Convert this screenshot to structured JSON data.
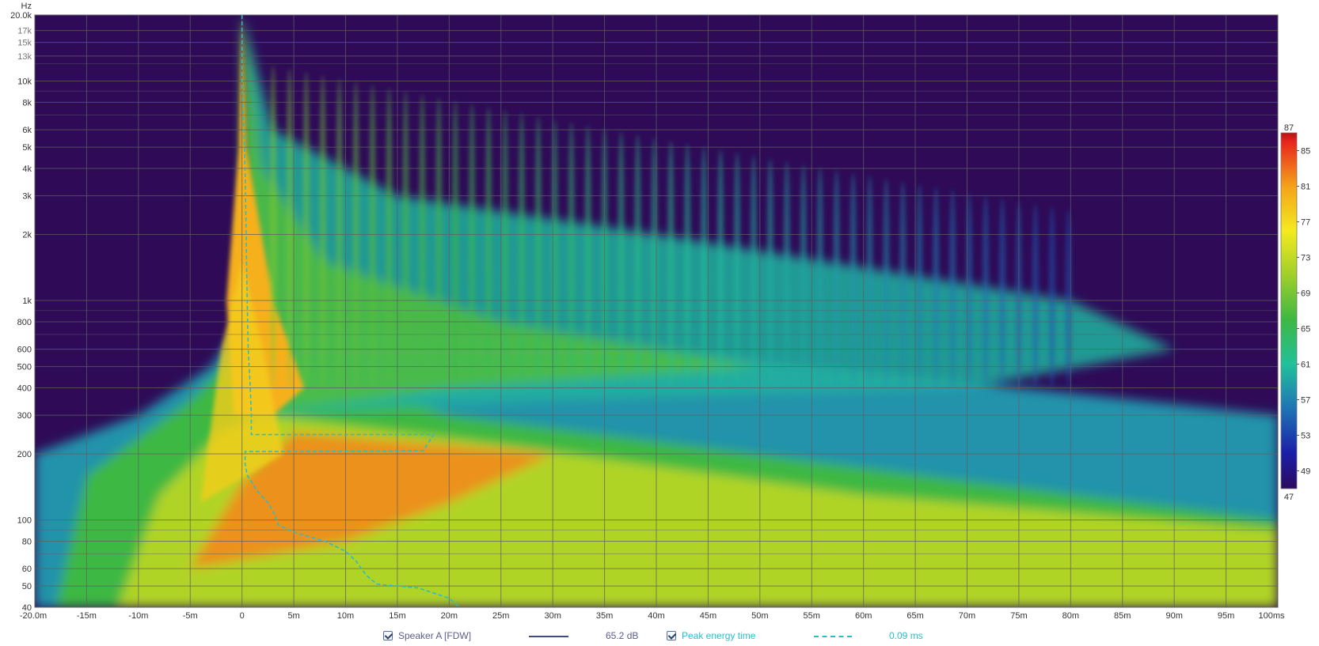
{
  "chart_data": {
    "type": "heatmap",
    "title": "",
    "x_unit_label": "ms",
    "y_unit_label": "Hz",
    "xlim": [
      -20,
      100
    ],
    "ylim": [
      40,
      20000
    ],
    "y_scale": "log",
    "x_ticks": [
      {
        "v": -20,
        "label": "-20.0m"
      },
      {
        "v": -15,
        "label": "-15m"
      },
      {
        "v": -10,
        "label": "-10m"
      },
      {
        "v": -5,
        "label": "-5m"
      },
      {
        "v": 0,
        "label": "0"
      },
      {
        "v": 5,
        "label": "5m"
      },
      {
        "v": 10,
        "label": "10m"
      },
      {
        "v": 15,
        "label": "15m"
      },
      {
        "v": 20,
        "label": "20m"
      },
      {
        "v": 25,
        "label": "25m"
      },
      {
        "v": 30,
        "label": "30m"
      },
      {
        "v": 35,
        "label": "35m"
      },
      {
        "v": 40,
        "label": "40m"
      },
      {
        "v": 45,
        "label": "45m"
      },
      {
        "v": 50,
        "label": "50m"
      },
      {
        "v": 55,
        "label": "55m"
      },
      {
        "v": 60,
        "label": "60m"
      },
      {
        "v": 65,
        "label": "65m"
      },
      {
        "v": 70,
        "label": "70m"
      },
      {
        "v": 75,
        "label": "75m"
      },
      {
        "v": 80,
        "label": "80m"
      },
      {
        "v": 85,
        "label": "85m"
      },
      {
        "v": 90,
        "label": "90m"
      },
      {
        "v": 95,
        "label": "95m"
      },
      {
        "v": 100,
        "label": "100ms"
      }
    ],
    "y_ticks": [
      {
        "v": 20000,
        "label": "20.0k",
        "dim": false
      },
      {
        "v": 17000,
        "label": "17k",
        "dim": true
      },
      {
        "v": 15000,
        "label": "15k",
        "dim": true
      },
      {
        "v": 13000,
        "label": "13k",
        "dim": true
      },
      {
        "v": 10000,
        "label": "10k",
        "dim": false
      },
      {
        "v": 8000,
        "label": "8k",
        "dim": false
      },
      {
        "v": 6000,
        "label": "6k",
        "dim": false
      },
      {
        "v": 5000,
        "label": "5k",
        "dim": false
      },
      {
        "v": 4000,
        "label": "4k",
        "dim": false
      },
      {
        "v": 3000,
        "label": "3k",
        "dim": false
      },
      {
        "v": 2000,
        "label": "2k",
        "dim": false
      },
      {
        "v": 1000,
        "label": "1k",
        "dim": false
      },
      {
        "v": 800,
        "label": "800",
        "dim": false
      },
      {
        "v": 600,
        "label": "600",
        "dim": false
      },
      {
        "v": 500,
        "label": "500",
        "dim": false
      },
      {
        "v": 400,
        "label": "400",
        "dim": false
      },
      {
        "v": 300,
        "label": "300",
        "dim": false
      },
      {
        "v": 200,
        "label": "200",
        "dim": false
      },
      {
        "v": 100,
        "label": "100",
        "dim": false
      },
      {
        "v": 80,
        "label": "80",
        "dim": false
      },
      {
        "v": 60,
        "label": "60",
        "dim": false
      },
      {
        "v": 50,
        "label": "50",
        "dim": false
      },
      {
        "v": 40,
        "label": "40",
        "dim": false
      }
    ],
    "minor_y_gridlines": [
      12000,
      9000,
      7000,
      900,
      700,
      90,
      70
    ],
    "colorbar": {
      "min": 47,
      "max": 87,
      "min_label": "47",
      "max_label": "87",
      "ticks": [
        85,
        81,
        77,
        73,
        69,
        65,
        61,
        57,
        53,
        49
      ],
      "stops": [
        {
          "v": 47,
          "color": "#2c0a5e"
        },
        {
          "v": 51,
          "color": "#1a1fa8"
        },
        {
          "v": 56,
          "color": "#1f74b5"
        },
        {
          "v": 61,
          "color": "#21c19a"
        },
        {
          "v": 66,
          "color": "#3db843"
        },
        {
          "v": 71,
          "color": "#9fcf2a"
        },
        {
          "v": 76,
          "color": "#f4ea1f"
        },
        {
          "v": 81,
          "color": "#f5a21a"
        },
        {
          "v": 86,
          "color": "#e8251c"
        },
        {
          "v": 87,
          "color": "#b51212"
        }
      ]
    },
    "background_color": "#2e0a57",
    "peak_energy_curve": [
      [
        0,
        20000
      ],
      [
        0,
        10000
      ],
      [
        0.3,
        4000
      ],
      [
        0.4,
        2000
      ],
      [
        0.5,
        1000
      ],
      [
        0.6,
        600
      ],
      [
        0.8,
        400
      ],
      [
        0.9,
        300
      ],
      [
        0.9,
        245
      ],
      [
        15,
        245
      ],
      [
        18.5,
        245
      ],
      [
        17.5,
        207
      ],
      [
        15,
        206
      ],
      [
        5,
        205
      ],
      [
        0.3,
        205
      ],
      [
        0.3,
        180
      ],
      [
        0.5,
        160
      ],
      [
        1.5,
        135
      ],
      [
        2.5,
        120
      ],
      [
        3.2,
        105
      ],
      [
        3.5,
        95
      ],
      [
        5,
        88
      ],
      [
        8,
        80
      ],
      [
        10,
        72
      ],
      [
        11,
        65
      ],
      [
        12,
        56
      ],
      [
        13,
        51
      ],
      [
        17,
        49
      ],
      [
        20,
        44
      ],
      [
        21,
        40
      ]
    ]
  },
  "legend": {
    "series1_label": "Speaker A [FDW]",
    "series1_value": "65.2 dB",
    "series2_label": "Peak energy time",
    "series2_value": "0.09 ms",
    "series1_color": "#5b5d8c",
    "series2_color": "#2cbcc8"
  }
}
